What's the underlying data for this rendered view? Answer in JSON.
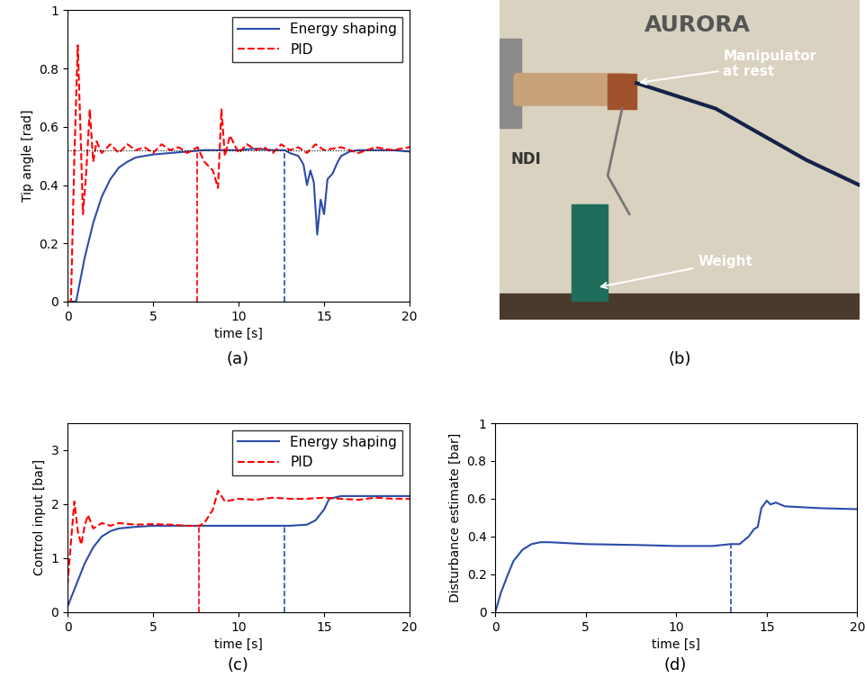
{
  "chart_data": [
    {
      "type": "line",
      "caption": "(a)",
      "x_label": "time [s]",
      "y_label": "Tip angle [rad]",
      "xlim": [
        0,
        20
      ],
      "xticks": [
        0,
        5,
        10,
        15,
        20
      ],
      "ylim": [
        0,
        1
      ],
      "yticks": [
        0,
        0.2,
        0.4,
        0.6,
        0.8,
        1
      ],
      "grid": false,
      "legend": "upper right",
      "reference": 0.52,
      "events": [
        {
          "x": 7.6,
          "y": 0.52,
          "color": "#ff0000"
        },
        {
          "x": 12.7,
          "y": 0.52,
          "color": "#2c4ca8"
        }
      ],
      "series": [
        {
          "name": "Energy shaping",
          "color": "#2c4ca8",
          "line_style": "solid",
          "x": [
            0,
            0.5,
            1,
            1.5,
            2,
            2.5,
            3,
            3.5,
            4,
            5,
            6,
            7,
            8,
            9,
            10,
            11,
            12,
            12.7,
            13,
            13.5,
            13.8,
            14,
            14.2,
            14.4,
            14.6,
            14.8,
            15,
            15.2,
            15.5,
            15.8,
            16,
            16.5,
            17,
            18,
            19,
            20
          ],
          "values": [
            0,
            0,
            0.15,
            0.27,
            0.36,
            0.42,
            0.46,
            0.48,
            0.495,
            0.505,
            0.51,
            0.515,
            0.52,
            0.52,
            0.52,
            0.525,
            0.52,
            0.52,
            0.51,
            0.5,
            0.47,
            0.4,
            0.45,
            0.41,
            0.23,
            0.35,
            0.3,
            0.42,
            0.44,
            0.48,
            0.5,
            0.515,
            0.52,
            0.52,
            0.52,
            0.515
          ]
        },
        {
          "name": "PID",
          "color": "#ff0000",
          "line_style": "dashed",
          "x": [
            0,
            0.2,
            0.4,
            0.6,
            0.75,
            0.9,
            1.1,
            1.3,
            1.5,
            1.7,
            2,
            2.5,
            3,
            3.5,
            4,
            4.5,
            5,
            5.5,
            6,
            6.5,
            7,
            7.6,
            8,
            8.5,
            8.8,
            9,
            9.2,
            9.5,
            10,
            10.5,
            11,
            11.5,
            12,
            12.5,
            13,
            13.5,
            14,
            14.5,
            15,
            16,
            17,
            18,
            19,
            20
          ],
          "values": [
            0,
            0,
            0.5,
            0.88,
            0.6,
            0.3,
            0.45,
            0.66,
            0.48,
            0.55,
            0.51,
            0.54,
            0.51,
            0.54,
            0.52,
            0.53,
            0.51,
            0.54,
            0.52,
            0.53,
            0.51,
            0.53,
            0.48,
            0.45,
            0.39,
            0.66,
            0.5,
            0.57,
            0.51,
            0.54,
            0.52,
            0.53,
            0.51,
            0.54,
            0.52,
            0.53,
            0.51,
            0.54,
            0.52,
            0.53,
            0.51,
            0.53,
            0.52,
            0.53
          ]
        }
      ]
    },
    {
      "type": "line",
      "caption": "(c)",
      "x_label": "time [s]",
      "y_label": "Control input [bar]",
      "xlim": [
        0,
        20
      ],
      "xticks": [
        0,
        5,
        10,
        15,
        20
      ],
      "ylim": [
        0,
        3.5
      ],
      "yticks": [
        0,
        1,
        2,
        3
      ],
      "grid": false,
      "legend": "upper right",
      "events": [
        {
          "x": 7.7,
          "y": 1.6,
          "color": "#ff0000"
        },
        {
          "x": 12.7,
          "y": 1.6,
          "color": "#2c4ca8"
        }
      ],
      "series": [
        {
          "name": "Energy shaping",
          "color": "#2c4ca8",
          "line_style": "solid",
          "x": [
            0,
            0.5,
            1,
            1.5,
            2,
            2.5,
            3,
            4,
            5,
            7,
            9,
            11,
            12.7,
            13,
            14,
            14.5,
            15,
            15.3,
            16,
            18,
            20
          ],
          "values": [
            0.1,
            0.5,
            0.9,
            1.2,
            1.4,
            1.5,
            1.55,
            1.58,
            1.6,
            1.6,
            1.6,
            1.6,
            1.6,
            1.6,
            1.62,
            1.7,
            1.9,
            2.1,
            2.15,
            2.15,
            2.15
          ]
        },
        {
          "name": "PID",
          "color": "#ff0000",
          "line_style": "dashed",
          "x": [
            0,
            0.2,
            0.4,
            0.6,
            0.8,
            1,
            1.2,
            1.5,
            2,
            2.5,
            3,
            4,
            5,
            6,
            7,
            7.7,
            8,
            8.5,
            8.8,
            9.2,
            10,
            11,
            12,
            13,
            14,
            15,
            16,
            17,
            18,
            19,
            20
          ],
          "values": [
            0.5,
            1.3,
            2.05,
            1.5,
            1.25,
            1.6,
            1.8,
            1.55,
            1.65,
            1.6,
            1.65,
            1.62,
            1.63,
            1.62,
            1.6,
            1.6,
            1.65,
            1.9,
            2.25,
            2.05,
            2.1,
            2.08,
            2.12,
            2.1,
            2.1,
            2.12,
            2.1,
            2.08,
            2.12,
            2.1,
            2.1
          ]
        }
      ]
    },
    {
      "type": "line",
      "caption": "(d)",
      "x_label": "time [s]",
      "y_label": "Disturbance estimate [bar]",
      "xlim": [
        0,
        20
      ],
      "xticks": [
        0,
        5,
        10,
        15,
        20
      ],
      "ylim": [
        0,
        1
      ],
      "yticks": [
        0,
        0.2,
        0.4,
        0.6,
        0.8,
        1
      ],
      "grid": false,
      "events": [
        {
          "x": 13,
          "y": 0.36,
          "color": "#2c4ca8"
        }
      ],
      "series": [
        {
          "color": "#2c4ca8",
          "line_style": "solid",
          "x": [
            0,
            0.3,
            0.7,
            1,
            1.5,
            2,
            2.5,
            3,
            5,
            8,
            10,
            12,
            13,
            13.5,
            14,
            14.3,
            14.5,
            14.7,
            15,
            15.2,
            15.5,
            16,
            18,
            20
          ],
          "values": [
            0,
            0.1,
            0.2,
            0.27,
            0.33,
            0.36,
            0.37,
            0.37,
            0.36,
            0.355,
            0.35,
            0.35,
            0.36,
            0.36,
            0.4,
            0.44,
            0.45,
            0.55,
            0.59,
            0.57,
            0.58,
            0.56,
            0.55,
            0.545
          ]
        }
      ]
    }
  ],
  "photo": {
    "caption": "(b)",
    "texts": [
      "AURORA",
      "NDI"
    ],
    "annotations": [
      "Manipulator\nat rest",
      "Weight"
    ]
  }
}
